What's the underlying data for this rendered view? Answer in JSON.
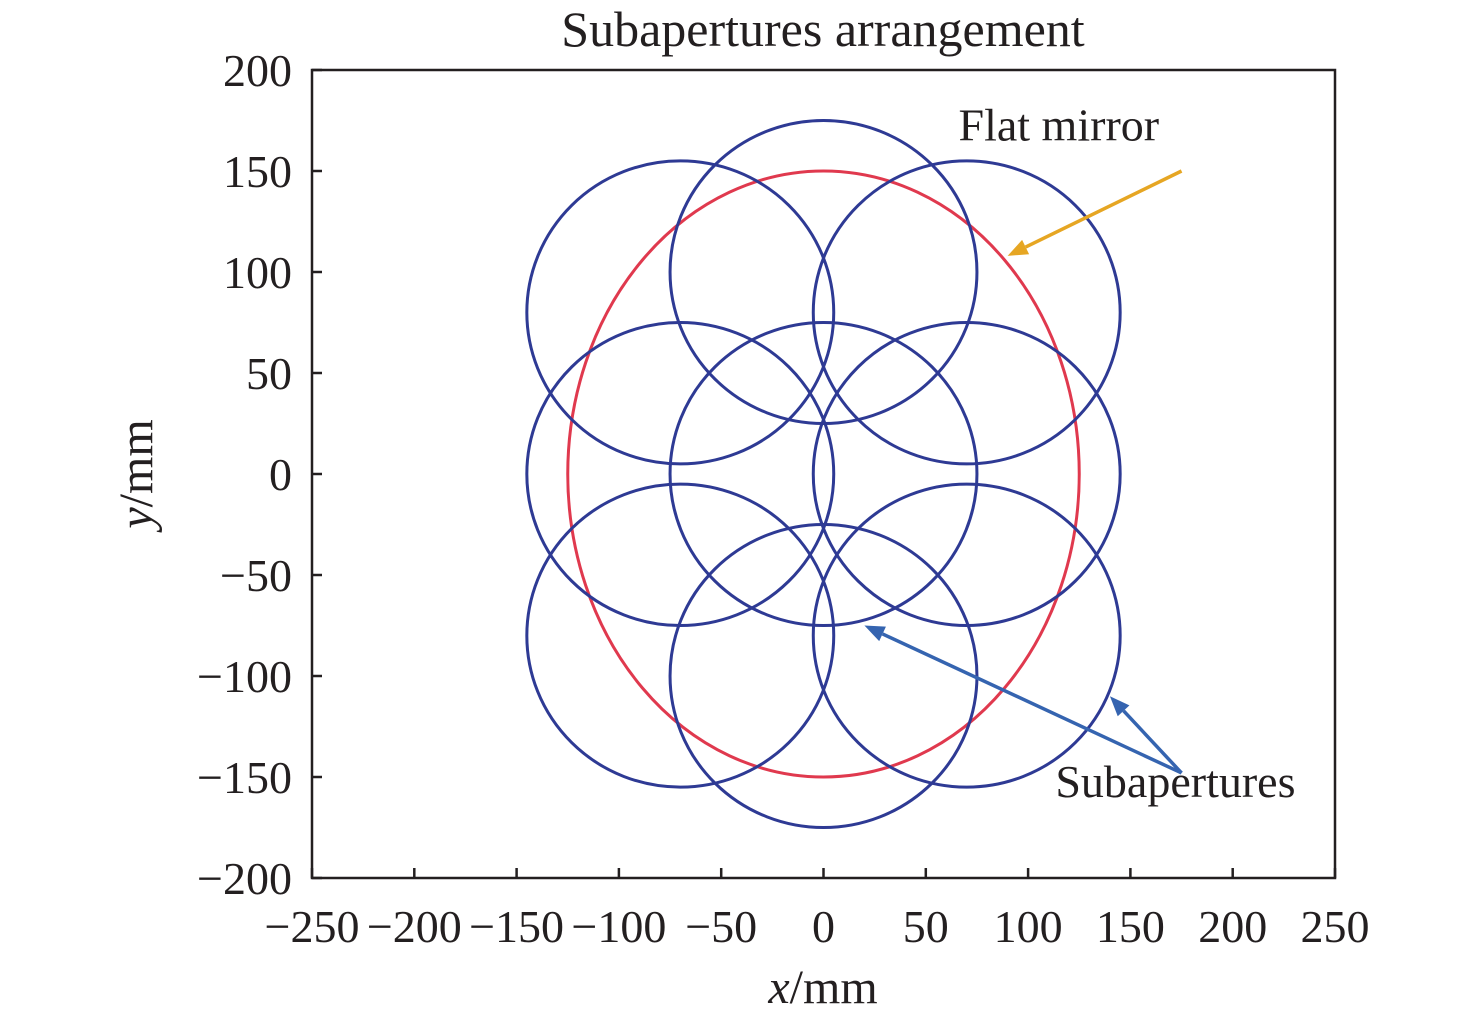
{
  "chart_data": {
    "type": "scatter",
    "title": "Subapertures arrangement",
    "xlabel": {
      "var": "x",
      "unit": "/mm"
    },
    "ylabel": {
      "var": "y",
      "unit": "/mm"
    },
    "xlim": [
      -250,
      250
    ],
    "ylim": [
      -200,
      200
    ],
    "xticks": [
      -250,
      -200,
      -150,
      -100,
      -50,
      0,
      50,
      100,
      150,
      200,
      250
    ],
    "yticks": [
      200,
      150,
      100,
      50,
      0,
      -50,
      -100,
      -150,
      -200
    ],
    "grid": false,
    "flat_mirror": {
      "label": "Flat mirror",
      "center": [
        0,
        0
      ],
      "rx": 125,
      "ry": 150,
      "color": "#e0394e"
    },
    "subapertures": {
      "label": "Subapertures",
      "radius": 75,
      "color": "#2e3a94",
      "centers": [
        [
          0,
          100
        ],
        [
          0,
          0
        ],
        [
          0,
          -100
        ],
        [
          -70,
          80
        ],
        [
          -70,
          0
        ],
        [
          -70,
          -80
        ],
        [
          70,
          80
        ],
        [
          70,
          0
        ],
        [
          70,
          -80
        ]
      ]
    },
    "annotations": [
      {
        "text": "Flat mirror",
        "arrow_color": "#e6a623",
        "text_pos": [
          115,
          165
        ],
        "arrow_tail": [
          175,
          150
        ],
        "arrow_head": [
          90,
          108
        ]
      },
      {
        "text": "Subapertures",
        "arrow_color": "#3564b0",
        "text_pos": [
          172,
          -160
        ],
        "arrow_tail": [
          175,
          -148
        ],
        "arrow_heads": [
          [
            20,
            -75
          ],
          [
            140,
            -110
          ]
        ]
      }
    ]
  }
}
